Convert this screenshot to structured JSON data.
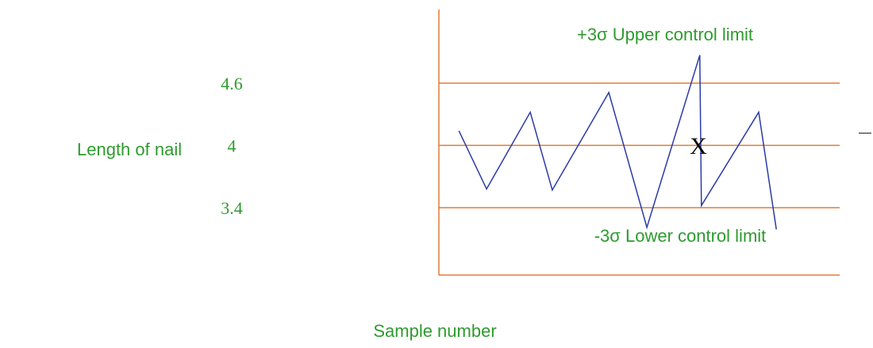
{
  "chart_data": {
    "type": "line",
    "y_label": "Length of nail",
    "x_label": "Sample number",
    "annotations": [
      "+3σ Upper control limit",
      "-3σ Lower control limit",
      "X"
    ],
    "x": [
      0.5,
      1.19,
      2.28,
      2.83,
      4.24,
      5.19,
      6.51,
      6.55,
      7.98,
      8.42
    ],
    "series": [
      {
        "color": "#2a3aa8",
        "values": [
          4.14,
          3.58,
          4.32,
          3.57,
          4.51,
          3.21,
          4.87,
          3.42,
          4.32,
          3.19
        ]
      }
    ],
    "xlim": [
      0,
      10
    ],
    "ylim": [
      2.75,
      5.31
    ],
    "yticks": [
      4.6,
      4,
      3.4
    ],
    "grid": true,
    "grid_color": "#e07b39"
  }
}
